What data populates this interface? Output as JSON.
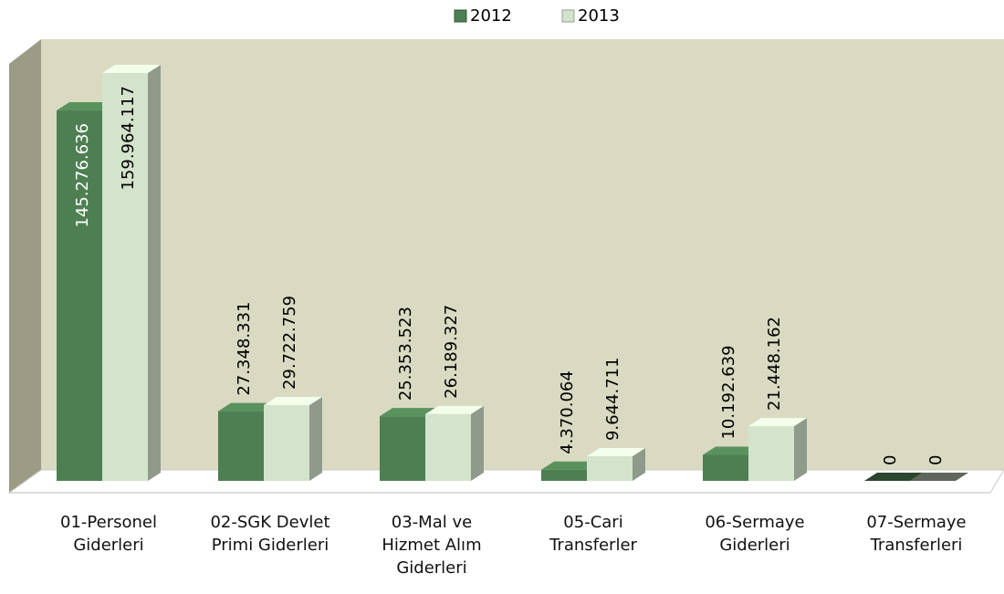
{
  "chart_data": {
    "type": "bar3d",
    "categories": [
      "01-Personel Giderleri",
      "02-SGK Devlet Primi Giderleri",
      "03-Mal ve Hizmet Alım Giderleri",
      "05-Cari Transferler",
      "06-Sermaye Giderleri",
      "07-Sermaye Transferleri"
    ],
    "series": [
      {
        "name": "2012",
        "color": "#4e7f52",
        "values": [
          145276636,
          27348331,
          25353523,
          4370064,
          10192639,
          0
        ],
        "value_labels": [
          "145.276.636",
          "27.348.331",
          "25.353.523",
          "4.370.064",
          "10.192.639",
          "0"
        ]
      },
      {
        "name": "2013",
        "color": "#d3e3cc",
        "values": [
          159964117,
          29722759,
          26189327,
          9644711,
          21448162,
          0
        ],
        "value_labels": [
          "159.964.117",
          "29.722.759",
          "26.189.327",
          "9.644.711",
          "21.448.162",
          "0"
        ]
      }
    ],
    "legend": "top"
  }
}
